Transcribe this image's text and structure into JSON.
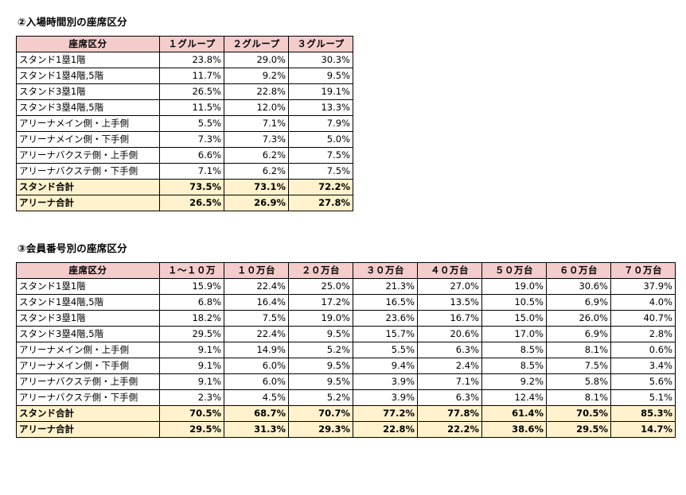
{
  "section1": {
    "title": "②入場時間別の座席区分",
    "header": [
      "座席区分",
      "１グループ",
      "２グループ",
      "３グループ"
    ],
    "rows": [
      {
        "label": "スタンド1塁1階",
        "values": [
          "23.8%",
          "29.0%",
          "30.3%"
        ],
        "total": false
      },
      {
        "label": "スタンド1塁4階,5階",
        "values": [
          "11.7%",
          "9.2%",
          "9.5%"
        ],
        "total": false
      },
      {
        "label": "スタンド3塁1階",
        "values": [
          "26.5%",
          "22.8%",
          "19.1%"
        ],
        "total": false
      },
      {
        "label": "スタンド3塁4階,5階",
        "values": [
          "11.5%",
          "12.0%",
          "13.3%"
        ],
        "total": false
      },
      {
        "label": "アリーナメイン側・上手側",
        "values": [
          "5.5%",
          "7.1%",
          "7.9%"
        ],
        "total": false
      },
      {
        "label": "アリーナメイン側・下手側",
        "values": [
          "7.3%",
          "7.3%",
          "5.0%"
        ],
        "total": false
      },
      {
        "label": "アリーナバクステ側・上手側",
        "values": [
          "6.6%",
          "6.2%",
          "7.5%"
        ],
        "total": false
      },
      {
        "label": "アリーナバクステ側・下手側",
        "values": [
          "7.1%",
          "6.2%",
          "7.5%"
        ],
        "total": false
      },
      {
        "label": "スタンド合計",
        "values": [
          "73.5%",
          "73.1%",
          "72.2%"
        ],
        "total": true
      },
      {
        "label": "アリーナ合計",
        "values": [
          "26.5%",
          "26.9%",
          "27.8%"
        ],
        "total": true
      }
    ]
  },
  "section2": {
    "title": "③会員番号別の座席区分",
    "header": [
      "座席区分",
      "１～１０万",
      "１０万台",
      "２０万台",
      "３０万台",
      "４０万台",
      "５０万台",
      "６０万台",
      "７０万台"
    ],
    "rows": [
      {
        "label": "スタンド1塁1階",
        "values": [
          "15.9%",
          "22.4%",
          "25.0%",
          "21.3%",
          "27.0%",
          "19.0%",
          "30.6%",
          "37.9%"
        ],
        "total": false
      },
      {
        "label": "スタンド1塁4階,5階",
        "values": [
          "6.8%",
          "16.4%",
          "17.2%",
          "16.5%",
          "13.5%",
          "10.5%",
          "6.9%",
          "4.0%"
        ],
        "total": false
      },
      {
        "label": "スタンド3塁1階",
        "values": [
          "18.2%",
          "7.5%",
          "19.0%",
          "23.6%",
          "16.7%",
          "15.0%",
          "26.0%",
          "40.7%"
        ],
        "total": false
      },
      {
        "label": "スタンド3塁4階,5階",
        "values": [
          "29.5%",
          "22.4%",
          "9.5%",
          "15.7%",
          "20.6%",
          "17.0%",
          "6.9%",
          "2.8%"
        ],
        "total": false
      },
      {
        "label": "アリーナメイン側・上手側",
        "values": [
          "9.1%",
          "14.9%",
          "5.2%",
          "5.5%",
          "6.3%",
          "8.5%",
          "8.1%",
          "0.6%"
        ],
        "total": false
      },
      {
        "label": "アリーナメイン側・下手側",
        "values": [
          "9.1%",
          "6.0%",
          "9.5%",
          "9.4%",
          "2.4%",
          "8.5%",
          "7.5%",
          "3.4%"
        ],
        "total": false
      },
      {
        "label": "アリーナバクステ側・上手側",
        "values": [
          "9.1%",
          "6.0%",
          "9.5%",
          "3.9%",
          "7.1%",
          "9.2%",
          "5.8%",
          "5.6%"
        ],
        "total": false
      },
      {
        "label": "アリーナバクステ側・下手側",
        "values": [
          "2.3%",
          "4.5%",
          "5.2%",
          "3.9%",
          "6.3%",
          "12.4%",
          "8.1%",
          "5.1%"
        ],
        "total": false
      },
      {
        "label": "スタンド合計",
        "values": [
          "70.5%",
          "68.7%",
          "70.7%",
          "77.2%",
          "77.8%",
          "61.4%",
          "70.5%",
          "85.3%"
        ],
        "total": true
      },
      {
        "label": "アリーナ合計",
        "values": [
          "29.5%",
          "31.3%",
          "29.3%",
          "22.8%",
          "22.2%",
          "38.6%",
          "29.5%",
          "14.7%"
        ],
        "total": true
      }
    ]
  },
  "colors": {
    "header_bg": "#f4cccc",
    "total_bg": "#fff2cc",
    "border": "#000000"
  }
}
